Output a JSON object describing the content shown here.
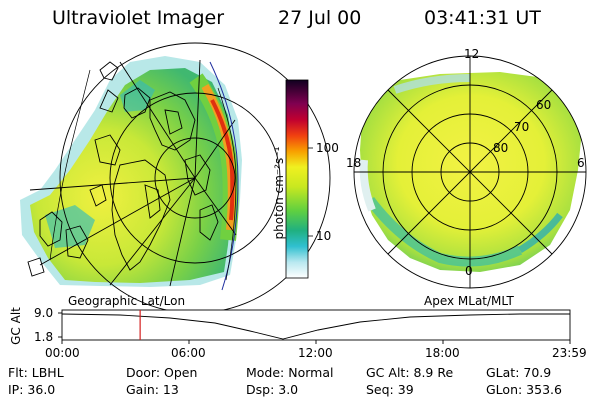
{
  "header": {
    "instrument": "Ultraviolet Imager",
    "date": "27 Jul 00",
    "time": "03:41:31 UT"
  },
  "colorbar": {
    "unit_label": "photon cm⁻²s⁻¹",
    "ticks": [
      "100",
      "10"
    ]
  },
  "polar_plot": {
    "mlt_labels": [
      "12",
      "18",
      "6",
      "0"
    ],
    "lat_labels": [
      "60",
      "70",
      "80"
    ]
  },
  "panels": {
    "left_caption": "Geographic Lat/Lon",
    "right_caption": "Apex MLat/MLT"
  },
  "altitude_plot": {
    "axis_label": "GC Alt",
    "y_ticks": [
      "9.0",
      "1.8"
    ],
    "time_ticks": [
      "00:00",
      "06:00",
      "12:00",
      "18:00",
      "23:59"
    ],
    "current_time_fraction": 0.1538,
    "marker_color": "#d42020"
  },
  "parameters": {
    "flt": "Flt: LBHL",
    "door": "Door: Open",
    "mode": "Mode: Normal",
    "gc_alt": "GC Alt: 8.9 Re",
    "glat": "GLat:  70.9",
    "ip": "IP: 36.0",
    "gain": "Gain: 13",
    "dsp": "Dsp:    3.0",
    "seq": "Seq: 39",
    "glon": "GLon: 353.6"
  }
}
